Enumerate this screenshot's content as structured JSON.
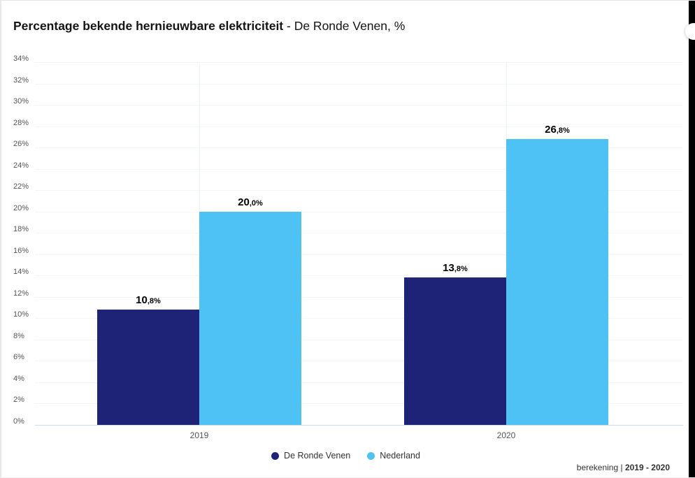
{
  "page": {
    "title_bold": "Percentage bekende hernieuwbare elektriciteit",
    "title_rest": " - De Ronde Venen, %",
    "source_prefix": "berekening | ",
    "source_period": "2019 - 2020"
  },
  "chart_data": {
    "type": "bar",
    "title": "Percentage bekende hernieuwbare elektriciteit - De Ronde Venen, %",
    "categories": [
      "2019",
      "2020"
    ],
    "series": [
      {
        "name": "De Ronde Venen",
        "color": "#1f2377",
        "values": [
          10.8,
          13.8
        ]
      },
      {
        "name": "Nederland",
        "color": "#4ec1f5",
        "values": [
          20.0,
          26.8
        ]
      }
    ],
    "value_labels": [
      [
        "10,8%",
        "13,8%"
      ],
      [
        "20,0%",
        "26,8%"
      ]
    ],
    "ylabel": "%",
    "ylim": [
      0,
      34
    ],
    "ytick_step": 2,
    "ytick_suffix": "%",
    "grid": true,
    "legend_position": "bottom",
    "decimal_separator": ","
  }
}
